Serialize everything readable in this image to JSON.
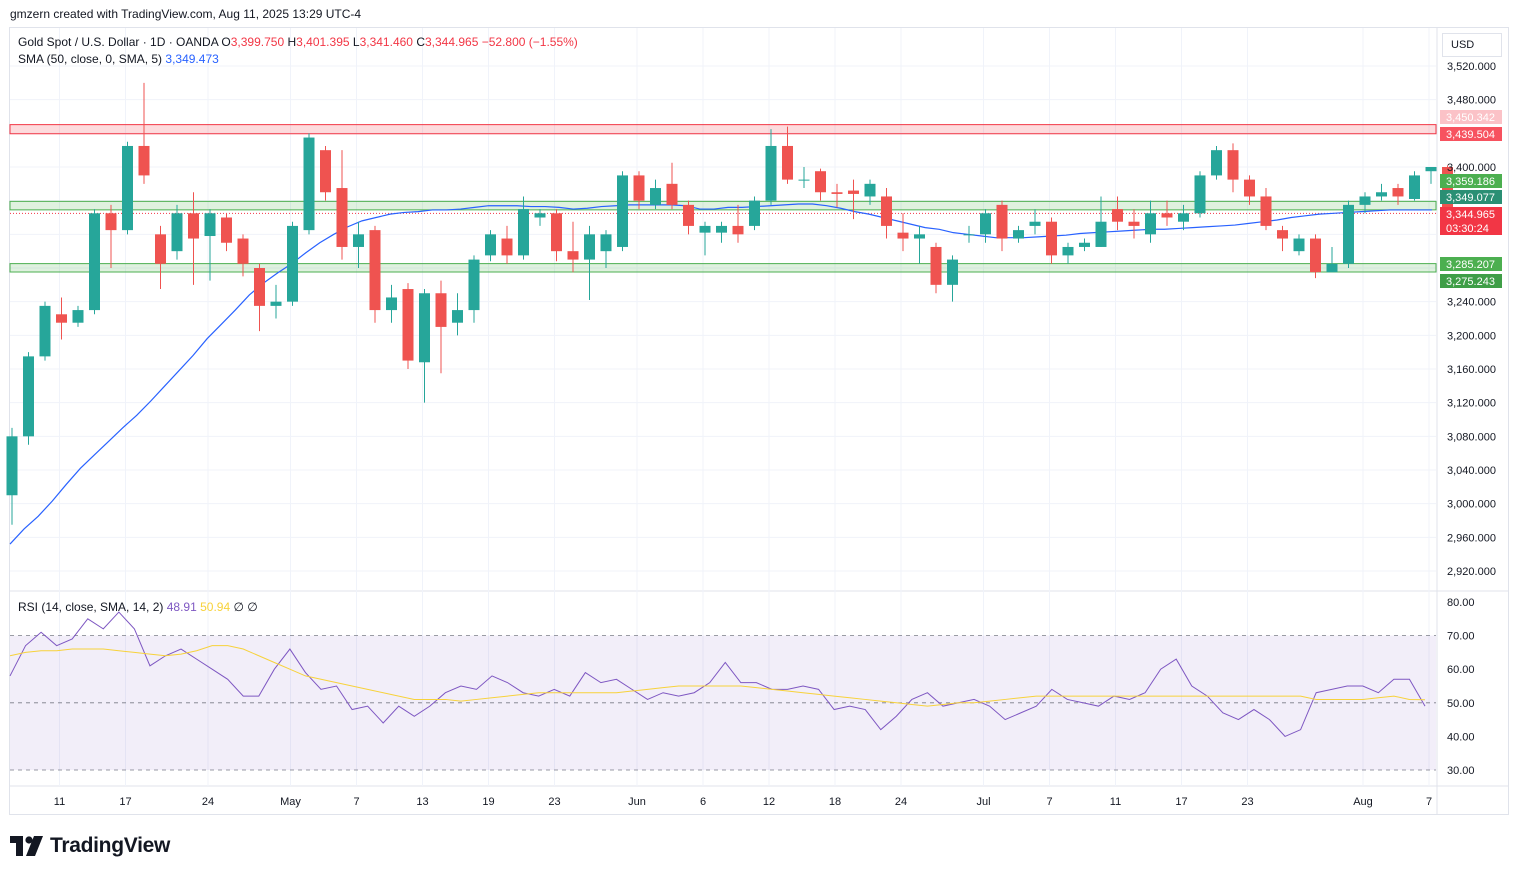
{
  "header": {
    "creator_line": "gmzern created with TradingView.com, Aug 11, 2025 13:29 UTC-4"
  },
  "legend": {
    "symbol": "Gold Spot / U.S. Dollar · 1D · OANDA",
    "open_label": "O",
    "open": "3,399.750",
    "high_label": "H",
    "high": "3,401.395",
    "low_label": "L",
    "low": "3,341.460",
    "close_label": "C",
    "close": "3,344.965",
    "change": "−52.800 (−1.55%)",
    "sma_label": "SMA (50, close, 0, SMA, 5)",
    "sma_value": "3,349.473",
    "rsi_label": "RSI (14, close, SMA, 14, 2)",
    "rsi_value": "48.91",
    "rsi_sma_value": "50.94",
    "rsi_extra_1": "∅",
    "rsi_extra_2": "∅"
  },
  "currency": "USD",
  "footer": {
    "brand": "TradingView",
    "logo": "tradingview-logo"
  },
  "colors": {
    "up": "#26a69a",
    "down": "#ef5350",
    "sma": "#2962ff",
    "rsi": "#7e57c2",
    "rsi_sma": "#f7d23b",
    "resistance_zone": "#f23645",
    "support_zone": "#4caf50"
  },
  "chart_data": [
    {
      "type": "candlestick",
      "title": "Gold Spot / U.S. Dollar · 1D · OANDA",
      "ylim": [
        2900,
        3560
      ],
      "y_ticks": [
        2920,
        2960,
        3000,
        3040,
        3080,
        3120,
        3160,
        3200,
        3240,
        3280,
        3320,
        3360,
        3400,
        3440,
        3480,
        3520
      ],
      "y_tick_labels": [
        "2,920.000",
        "2,960.000",
        "3,000.000",
        "3,040.000",
        "3,080.000",
        "3,120.000",
        "3,160.000",
        "3,200.000",
        "3,240.000",
        "",
        "",
        "",
        "3,400.000",
        "",
        "3,480.000",
        "3,520.000"
      ],
      "x_tick_labels": [
        {
          "label": "11",
          "idx": 1
        },
        {
          "label": "17",
          "idx": 5
        },
        {
          "label": "24",
          "idx": 10
        },
        {
          "label": "May",
          "idx": 15
        },
        {
          "label": "7",
          "idx": 19
        },
        {
          "label": "13",
          "idx": 23
        },
        {
          "label": "19",
          "idx": 27
        },
        {
          "label": "23",
          "idx": 31
        },
        {
          "label": "Jun",
          "idx": 36
        },
        {
          "label": "6",
          "idx": 40
        },
        {
          "label": "12",
          "idx": 44
        },
        {
          "label": "18",
          "idx": 48
        },
        {
          "label": "24",
          "idx": 52
        },
        {
          "label": "Jul",
          "idx": 57
        },
        {
          "label": "7",
          "idx": 61
        },
        {
          "label": "11",
          "idx": 65
        },
        {
          "label": "17",
          "idx": 69
        },
        {
          "label": "23",
          "idx": 73
        },
        {
          "label": "Aug",
          "idx": 80
        },
        {
          "label": "7",
          "idx": 84
        }
      ],
      "candles": [
        [
          3010,
          3080,
          2975,
          3090
        ],
        [
          3080,
          3175,
          3070,
          3180
        ],
        [
          3175,
          3235,
          3170,
          3240
        ],
        [
          3225,
          3215,
          3195,
          3245
        ],
        [
          3215,
          3230,
          3210,
          3235
        ],
        [
          3230,
          3345,
          3225,
          3350
        ],
        [
          3345,
          3325,
          3280,
          3355
        ],
        [
          3325,
          3425,
          3320,
          3430
        ],
        [
          3425,
          3390,
          3380,
          3500
        ],
        [
          3320,
          3285,
          3255,
          3330
        ],
        [
          3300,
          3345,
          3290,
          3355
        ],
        [
          3345,
          3315,
          3260,
          3370
        ],
        [
          3318,
          3345,
          3265,
          3350
        ],
        [
          3340,
          3310,
          3300,
          3345
        ],
        [
          3315,
          3285,
          3270,
          3320
        ],
        [
          3280,
          3235,
          3205,
          3285
        ],
        [
          3235,
          3240,
          3220,
          3260
        ],
        [
          3240,
          3330,
          3235,
          3335
        ],
        [
          3325,
          3435,
          3320,
          3440
        ],
        [
          3420,
          3370,
          3360,
          3425
        ],
        [
          3375,
          3305,
          3290,
          3420
        ],
        [
          3305,
          3320,
          3280,
          3335
        ],
        [
          3325,
          3230,
          3215,
          3330
        ],
        [
          3230,
          3245,
          3215,
          3260
        ],
        [
          3255,
          3170,
          3160,
          3262
        ],
        [
          3168,
          3250,
          3120,
          3255
        ],
        [
          3250,
          3210,
          3155,
          3265
        ],
        [
          3215,
          3230,
          3200,
          3250
        ],
        [
          3230,
          3290,
          3215,
          3295
        ],
        [
          3295,
          3320,
          3288,
          3325
        ],
        [
          3315,
          3295,
          3285,
          3330
        ],
        [
          3295,
          3350,
          3290,
          3365
        ],
        [
          3340,
          3345,
          3330,
          3350
        ],
        [
          3345,
          3300,
          3288,
          3350
        ],
        [
          3300,
          3290,
          3275,
          3335
        ],
        [
          3290,
          3320,
          3242,
          3330
        ],
        [
          3300,
          3320,
          3280,
          3325
        ],
        [
          3305,
          3390,
          3300,
          3395
        ],
        [
          3390,
          3360,
          3350,
          3395
        ],
        [
          3355,
          3375,
          3350,
          3385
        ],
        [
          3380,
          3355,
          3350,
          3405
        ],
        [
          3355,
          3330,
          3320,
          3360
        ],
        [
          3322,
          3330,
          3295,
          3335
        ],
        [
          3322,
          3330,
          3310,
          3335
        ],
        [
          3330,
          3320,
          3310,
          3355
        ],
        [
          3330,
          3360,
          3325,
          3365
        ],
        [
          3360,
          3425,
          3355,
          3445
        ],
        [
          3425,
          3385,
          3380,
          3448
        ],
        [
          3385,
          3385,
          3375,
          3400
        ],
        [
          3395,
          3370,
          3360,
          3398
        ],
        [
          3370,
          3368,
          3352,
          3380
        ],
        [
          3372,
          3368,
          3338,
          3385
        ],
        [
          3365,
          3380,
          3355,
          3385
        ],
        [
          3365,
          3330,
          3315,
          3375
        ],
        [
          3322,
          3315,
          3300,
          3345
        ],
        [
          3315,
          3320,
          3285,
          3330
        ],
        [
          3305,
          3260,
          3250,
          3310
        ],
        [
          3260,
          3290,
          3240,
          3295
        ],
        [
          3320,
          3320,
          3310,
          3330
        ],
        [
          3320,
          3345,
          3310,
          3350
        ],
        [
          3355,
          3315,
          3300,
          3360
        ],
        [
          3315,
          3325,
          3310,
          3330
        ],
        [
          3330,
          3335,
          3320,
          3350
        ],
        [
          3335,
          3295,
          3285,
          3340
        ],
        [
          3295,
          3305,
          3285,
          3310
        ],
        [
          3305,
          3310,
          3300,
          3315
        ],
        [
          3305,
          3335,
          3305,
          3365
        ],
        [
          3350,
          3335,
          3325,
          3365
        ],
        [
          3335,
          3330,
          3315,
          3350
        ],
        [
          3320,
          3345,
          3310,
          3360
        ],
        [
          3345,
          3340,
          3330,
          3360
        ],
        [
          3335,
          3345,
          3325,
          3355
        ],
        [
          3345,
          3390,
          3340,
          3395
        ],
        [
          3390,
          3420,
          3385,
          3425
        ],
        [
          3420,
          3385,
          3370,
          3428
        ],
        [
          3385,
          3365,
          3355,
          3390
        ],
        [
          3365,
          3330,
          3325,
          3375
        ],
        [
          3325,
          3315,
          3300,
          3330
        ],
        [
          3300,
          3315,
          3295,
          3320
        ],
        [
          3315,
          3275,
          3268,
          3320
        ],
        [
          3275,
          3285,
          3275,
          3305
        ],
        [
          3285,
          3355,
          3280,
          3360
        ],
        [
          3355,
          3365,
          3345,
          3370
        ],
        [
          3365,
          3370,
          3360,
          3380
        ],
        [
          3375,
          3365,
          3355,
          3380
        ],
        [
          3362,
          3390,
          3360,
          3395
        ],
        [
          3395,
          3400,
          3380,
          3400
        ],
        [
          3400,
          3345,
          3341,
          3402
        ]
      ],
      "sma50": [
        [
          0,
          2952
        ],
        [
          3,
          2970
        ],
        [
          6,
          2985
        ],
        [
          9,
          3003
        ],
        [
          12,
          3023
        ],
        [
          15,
          3042
        ],
        [
          18,
          3058
        ],
        [
          21,
          3074
        ],
        [
          24,
          3090
        ],
        [
          27,
          3105
        ],
        [
          30,
          3122
        ],
        [
          33,
          3140
        ],
        [
          36,
          3158
        ],
        [
          39,
          3176
        ],
        [
          42,
          3196
        ],
        [
          45,
          3213
        ],
        [
          48,
          3230
        ],
        [
          51,
          3248
        ],
        [
          54,
          3262
        ],
        [
          57,
          3274
        ],
        [
          60,
          3285
        ],
        [
          63,
          3298
        ],
        [
          66,
          3310
        ],
        [
          69,
          3320
        ],
        [
          72,
          3329
        ],
        [
          75,
          3336
        ],
        [
          78,
          3340
        ],
        [
          81,
          3344
        ],
        [
          84,
          3346
        ],
        [
          87,
          3347
        ],
        [
          90,
          3349
        ],
        [
          93,
          3349
        ],
        [
          96,
          3350
        ],
        [
          99,
          3352
        ],
        [
          102,
          3354
        ],
        [
          105,
          3354
        ],
        [
          108,
          3354
        ],
        [
          111,
          3353
        ],
        [
          114,
          3353
        ],
        [
          117,
          3352
        ],
        [
          120,
          3350
        ],
        [
          123,
          3351
        ],
        [
          126,
          3353
        ],
        [
          129,
          3354
        ],
        [
          132,
          3355
        ],
        [
          135,
          3355
        ],
        [
          138,
          3355
        ],
        [
          141,
          3355
        ],
        [
          144,
          3354
        ],
        [
          147,
          3350
        ],
        [
          150,
          3350
        ],
        [
          153,
          3352
        ],
        [
          156,
          3352
        ],
        [
          159,
          3353
        ],
        [
          162,
          3354
        ],
        [
          165,
          3355
        ],
        [
          168,
          3356
        ],
        [
          171,
          3356
        ],
        [
          174,
          3354
        ],
        [
          177,
          3351
        ],
        [
          180,
          3347
        ],
        [
          183,
          3344
        ],
        [
          186,
          3340
        ],
        [
          189,
          3336
        ],
        [
          192,
          3332
        ],
        [
          195,
          3328
        ],
        [
          198,
          3326
        ],
        [
          201,
          3322
        ],
        [
          204,
          3320
        ],
        [
          207,
          3318
        ],
        [
          210,
          3316
        ],
        [
          213,
          3316
        ],
        [
          216,
          3316
        ],
        [
          219,
          3317
        ],
        [
          222,
          3318
        ],
        [
          225,
          3319
        ],
        [
          228,
          3321
        ],
        [
          231,
          3322
        ],
        [
          234,
          3323
        ],
        [
          237,
          3324
        ],
        [
          240,
          3325
        ],
        [
          243,
          3326
        ],
        [
          246,
          3326
        ],
        [
          249,
          3327
        ],
        [
          252,
          3328
        ],
        [
          255,
          3329
        ],
        [
          258,
          3330
        ],
        [
          261,
          3331
        ],
        [
          264,
          3333
        ],
        [
          267,
          3335
        ],
        [
          270,
          3337
        ],
        [
          273,
          3340
        ],
        [
          276,
          3342
        ],
        [
          279,
          3344
        ],
        [
          282,
          3345
        ],
        [
          285,
          3346
        ],
        [
          288,
          3347
        ],
        [
          291,
          3348
        ],
        [
          294,
          3349
        ],
        [
          297,
          3349
        ],
        [
          300,
          3349
        ],
        [
          303,
          3349
        ]
      ],
      "levels": {
        "resistance_upper": "3,450.342",
        "resistance_lower": "3,439.504",
        "support_upper": "3,359.186",
        "support_mid": "3,349.077",
        "current_price": "3,344.965",
        "countdown": "03:30:24",
        "support2_upper": "3,285.207",
        "support2_lower": "3,275.243"
      }
    },
    {
      "type": "line",
      "title": "RSI (14, close, SMA, 14, 2)",
      "ylim": [
        25,
        83
      ],
      "y_ticks": [
        30,
        40,
        50,
        60,
        70,
        80
      ],
      "y_tick_labels": [
        "30.00",
        "40.00",
        "50.00",
        "60.00",
        "70.00",
        "80.00"
      ],
      "band": [
        30,
        70
      ],
      "series": [
        {
          "name": "RSI",
          "values": [
            58,
            67,
            71,
            67,
            69,
            75,
            72,
            77,
            72,
            61,
            64,
            66,
            63,
            60,
            57,
            52,
            52,
            60,
            66,
            59,
            54,
            55,
            48,
            49,
            44,
            49,
            46,
            49,
            53,
            55,
            54,
            58,
            56,
            53,
            52,
            54,
            52,
            59,
            56,
            57,
            54,
            51,
            53,
            52,
            53,
            56,
            62,
            56,
            56,
            54,
            54,
            55,
            54,
            48,
            49,
            48,
            42,
            46,
            51,
            53,
            49,
            50,
            51,
            49,
            45,
            47,
            49,
            54,
            51,
            50,
            49,
            52,
            51,
            53,
            60,
            63,
            55,
            52,
            47,
            45,
            48,
            45,
            40,
            42,
            53,
            54,
            55,
            55,
            53,
            57,
            57,
            49
          ]
        },
        {
          "name": "RSI SMA",
          "values": [
            64,
            65,
            65.5,
            65.5,
            66,
            66,
            66,
            65.5,
            65,
            64.5,
            64,
            64.5,
            65.5,
            67,
            67,
            66,
            64,
            62,
            60,
            58,
            57,
            56,
            55,
            54,
            53,
            52,
            51,
            51,
            51,
            50.5,
            51,
            51.5,
            52,
            52.5,
            53,
            53,
            53,
            53,
            53,
            53,
            53.5,
            54,
            54.5,
            55,
            55,
            55,
            55,
            55,
            54.5,
            54,
            53.5,
            53,
            52.5,
            52,
            51.5,
            51,
            50.5,
            50,
            49.5,
            49,
            49.5,
            50,
            50,
            50.5,
            51,
            51.5,
            52,
            52,
            52,
            52,
            52,
            52,
            52,
            52,
            52,
            52,
            52,
            52,
            52,
            52,
            52,
            52,
            52,
            52,
            51,
            51,
            51,
            51,
            51.5,
            52,
            51,
            50.9
          ]
        }
      ]
    }
  ]
}
